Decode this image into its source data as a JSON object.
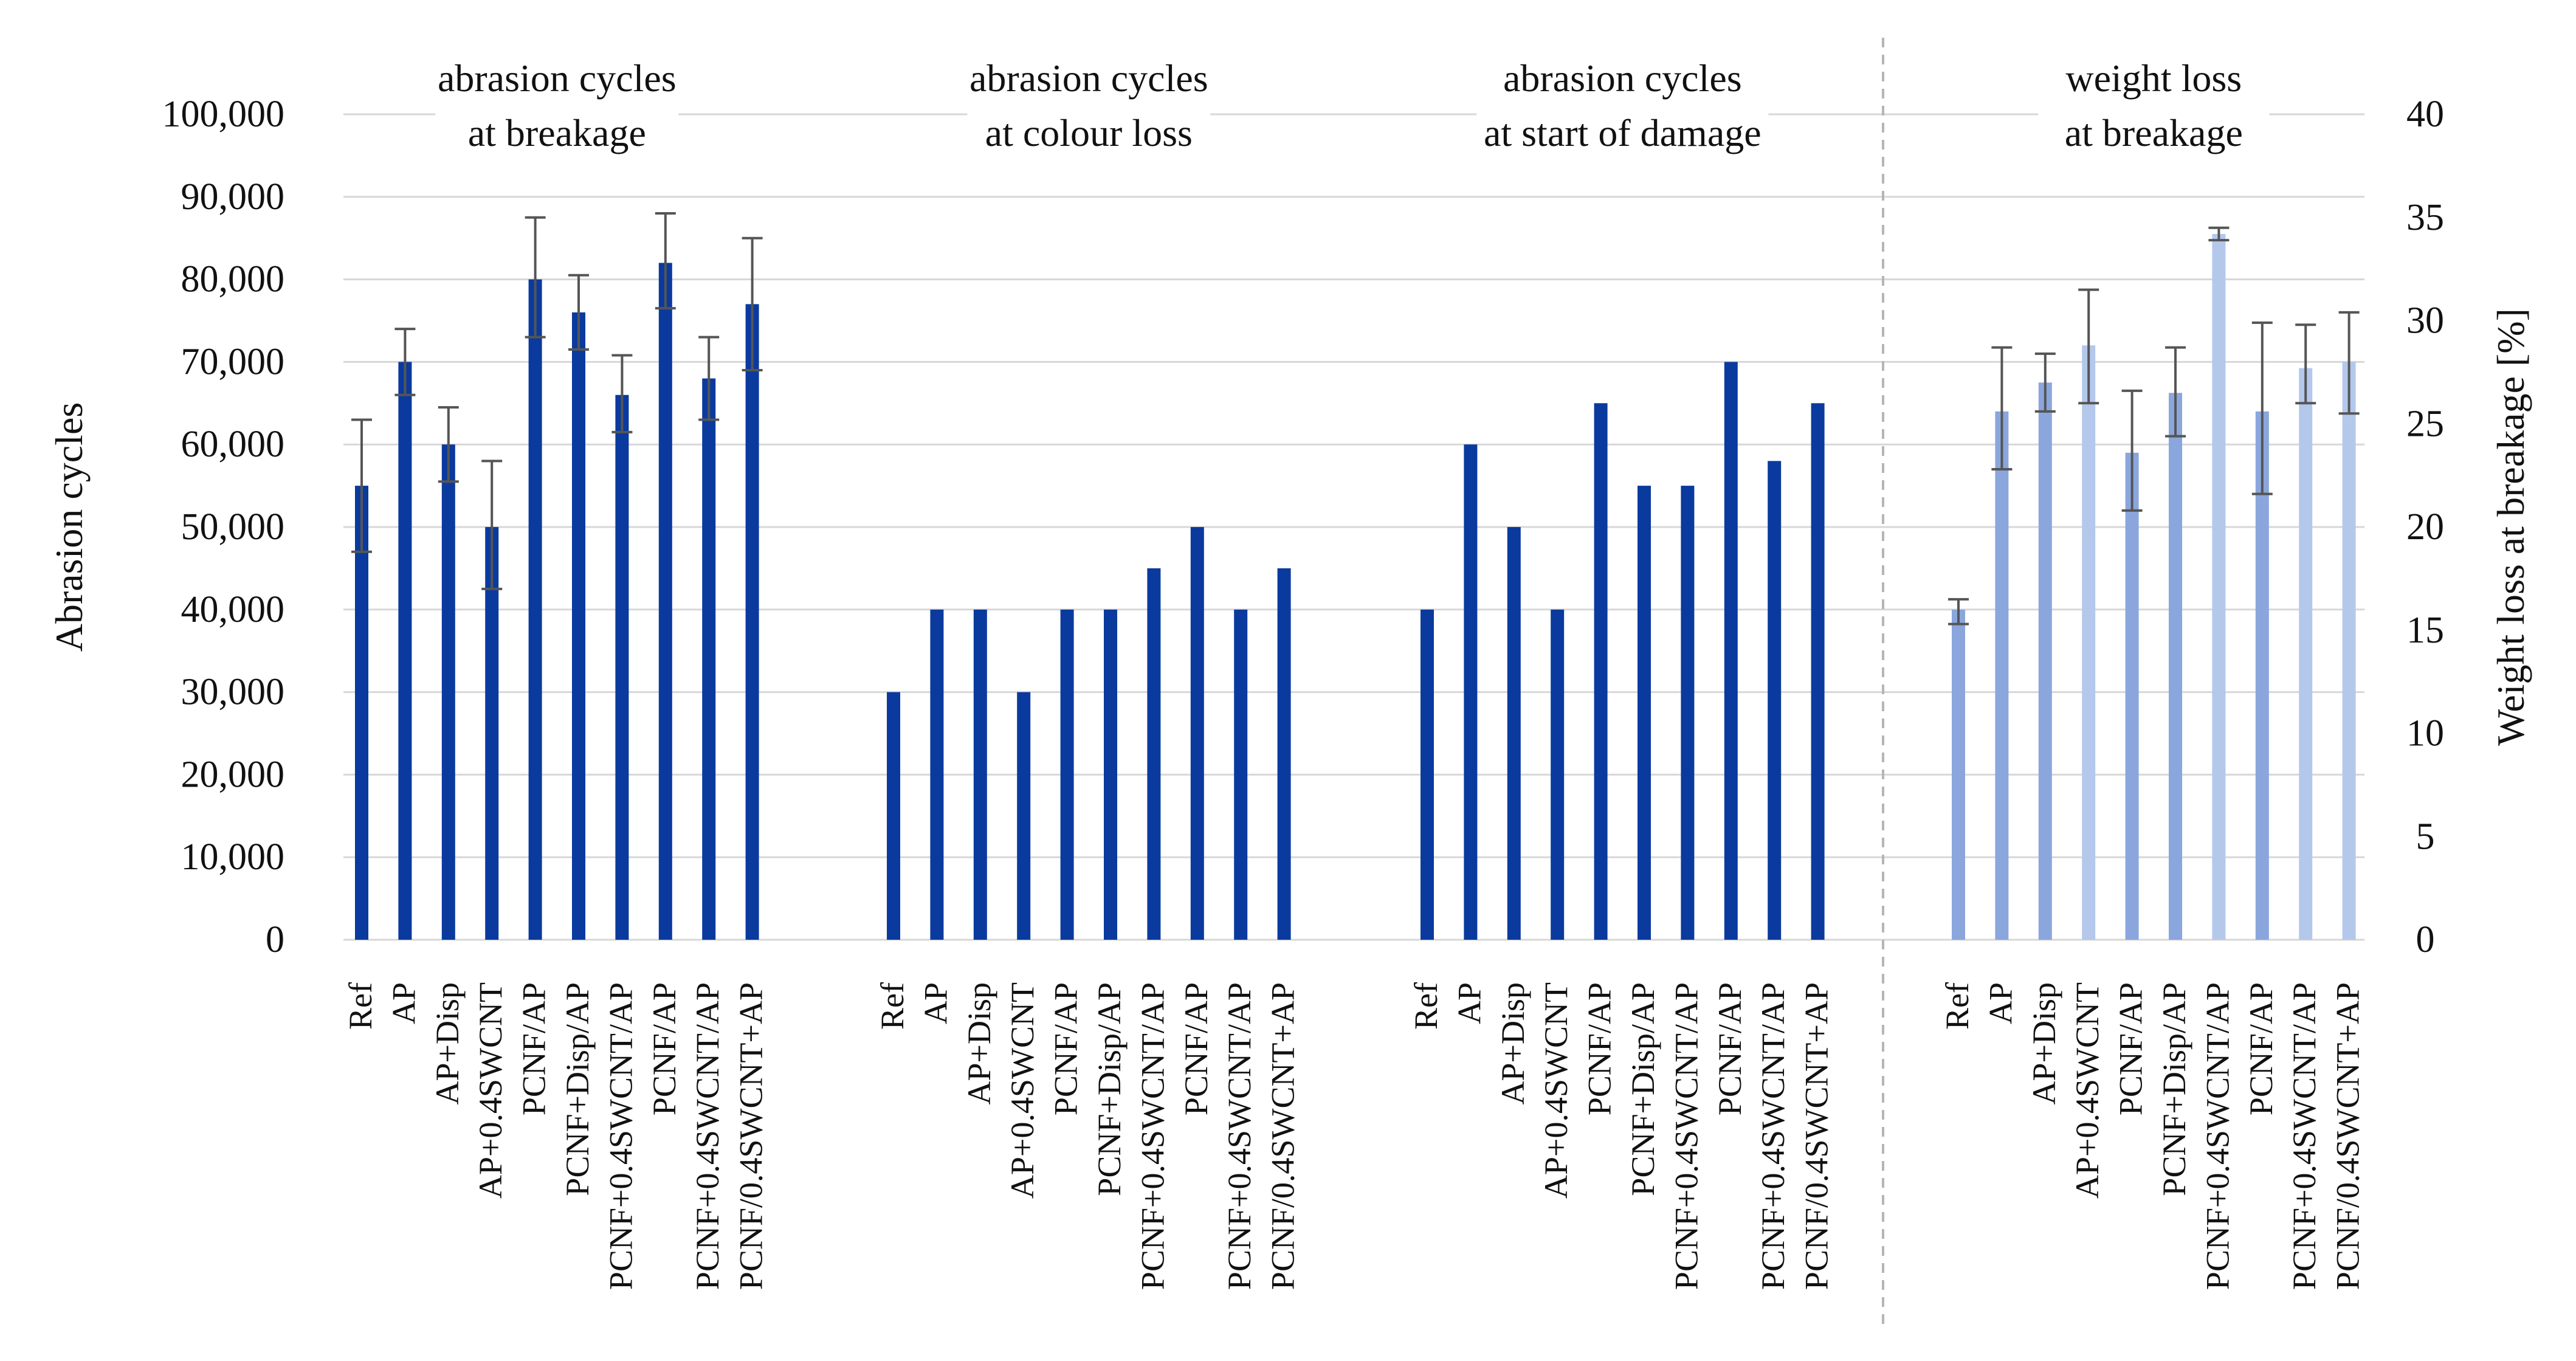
{
  "chart_data": {
    "type": "bar",
    "left_axis": {
      "title": "Abrasion cycles",
      "range": [
        0,
        100000
      ],
      "ticks": [
        0,
        10000,
        20000,
        30000,
        40000,
        50000,
        60000,
        70000,
        80000,
        90000,
        100000
      ],
      "tick_labels": [
        "0",
        "10,000",
        "20,000",
        "30,000",
        "40,000",
        "50,000",
        "60,000",
        "70,000",
        "80,000",
        "90,000",
        "100,000"
      ]
    },
    "right_axis": {
      "title": "Weight loss at breakage [%]",
      "range": [
        0,
        40
      ],
      "ticks": [
        0,
        5,
        10,
        15,
        20,
        25,
        30,
        35,
        40
      ],
      "tick_labels": [
        "0",
        "5",
        "10",
        "15",
        "20",
        "25",
        "30",
        "35",
        "40"
      ]
    },
    "gridlines": true,
    "groups": [
      {
        "title_lines": [
          "abrasion cycles",
          "at breakage"
        ],
        "axis": "left",
        "categories": [
          "Ref",
          "AP",
          "AP+Disp",
          "AP+0.4SWCNT",
          "PCNF/AP",
          "PCNF+Disp/AP",
          "PCNF+0.4SWCNT/AP",
          "PCNF/AP",
          "PCNF+0.4SWCNT/AP",
          "PCNF/0.4SWCNT+AP"
        ],
        "values": [
          55000,
          70000,
          60000,
          50000,
          80000,
          76000,
          66000,
          82000,
          68000,
          77000
        ],
        "error_low": [
          47000,
          66000,
          55500,
          42500,
          73000,
          71500,
          61500,
          76500,
          63000,
          69000
        ],
        "error_high": [
          63000,
          74000,
          64500,
          58000,
          87500,
          80500,
          70800,
          88000,
          73000,
          85000
        ],
        "colors": [
          "#0a3a9e",
          "#0a3a9e",
          "#0a3a9e",
          "#0a3a9e",
          "#0a3a9e",
          "#0a3a9e",
          "#0a3a9e",
          "#0a3a9e",
          "#0a3a9e",
          "#0a3a9e"
        ]
      },
      {
        "title_lines": [
          "abrasion cycles",
          "at colour loss"
        ],
        "axis": "left",
        "categories": [
          "Ref",
          "AP",
          "AP+Disp",
          "AP+0.4SWCNT",
          "PCNF/AP",
          "PCNF+Disp/AP",
          "PCNF+0.4SWCNT/AP",
          "PCNF/AP",
          "PCNF+0.4SWCNT/AP",
          "PCNF/0.4SWCNT+AP"
        ],
        "values": [
          30000,
          40000,
          40000,
          30000,
          40000,
          40000,
          45000,
          50000,
          40000,
          45000
        ],
        "colors": [
          "#0a3a9e",
          "#0a3a9e",
          "#0a3a9e",
          "#0a3a9e",
          "#0a3a9e",
          "#0a3a9e",
          "#0a3a9e",
          "#0a3a9e",
          "#0a3a9e",
          "#0a3a9e"
        ]
      },
      {
        "title_lines": [
          "abrasion cycles",
          "at start of damage"
        ],
        "axis": "left",
        "categories": [
          "Ref",
          "AP",
          "AP+Disp",
          "AP+0.4SWCNT",
          "PCNF/AP",
          "PCNF+Disp/AP",
          "PCNF+0.4SWCNT/AP",
          "PCNF/AP",
          "PCNF+0.4SWCNT/AP",
          "PCNF/0.4SWCNT+AP"
        ],
        "values": [
          40000,
          60000,
          50000,
          40000,
          65000,
          55000,
          55000,
          70000,
          58000,
          65000
        ],
        "colors": [
          "#0a3a9e",
          "#0a3a9e",
          "#0a3a9e",
          "#0a3a9e",
          "#0a3a9e",
          "#0a3a9e",
          "#0a3a9e",
          "#0a3a9e",
          "#0a3a9e",
          "#0a3a9e"
        ]
      },
      {
        "title_lines": [
          "weight loss",
          "at breakage"
        ],
        "axis": "right",
        "categories": [
          "Ref",
          "AP",
          "AP+Disp",
          "AP+0.4SWCNT",
          "PCNF/AP",
          "PCNF+Disp/AP",
          "PCNF+0.4SWCNT/AP",
          "PCNF/AP",
          "PCNF+0.4SWCNT/AP",
          "PCNF/0.4SWCNT+AP"
        ],
        "values": [
          16,
          25.6,
          27,
          28.8,
          23.6,
          26.5,
          34.2,
          25.6,
          27.7,
          28
        ],
        "error_low": [
          15.3,
          22.8,
          25.6,
          26,
          20.8,
          24.4,
          33.9,
          21.6,
          26,
          25.5
        ],
        "error_high": [
          16.5,
          28.7,
          28.4,
          31.5,
          26.6,
          28.7,
          34.5,
          29.9,
          29.8,
          30.4
        ],
        "colors": [
          "#8aa6dc",
          "#8aa6dc",
          "#8aa6dc",
          "#b4c8ec",
          "#8aa6dc",
          "#8aa6dc",
          "#b4c8ec",
          "#8aa6dc",
          "#b4c8ec",
          "#b4c8ec"
        ]
      }
    ],
    "colors": {
      "primary_bar": "#0a3a9e",
      "error_bar": "#555555",
      "gridline": "#d7d7d7",
      "separator": "#b5b5b5"
    }
  }
}
